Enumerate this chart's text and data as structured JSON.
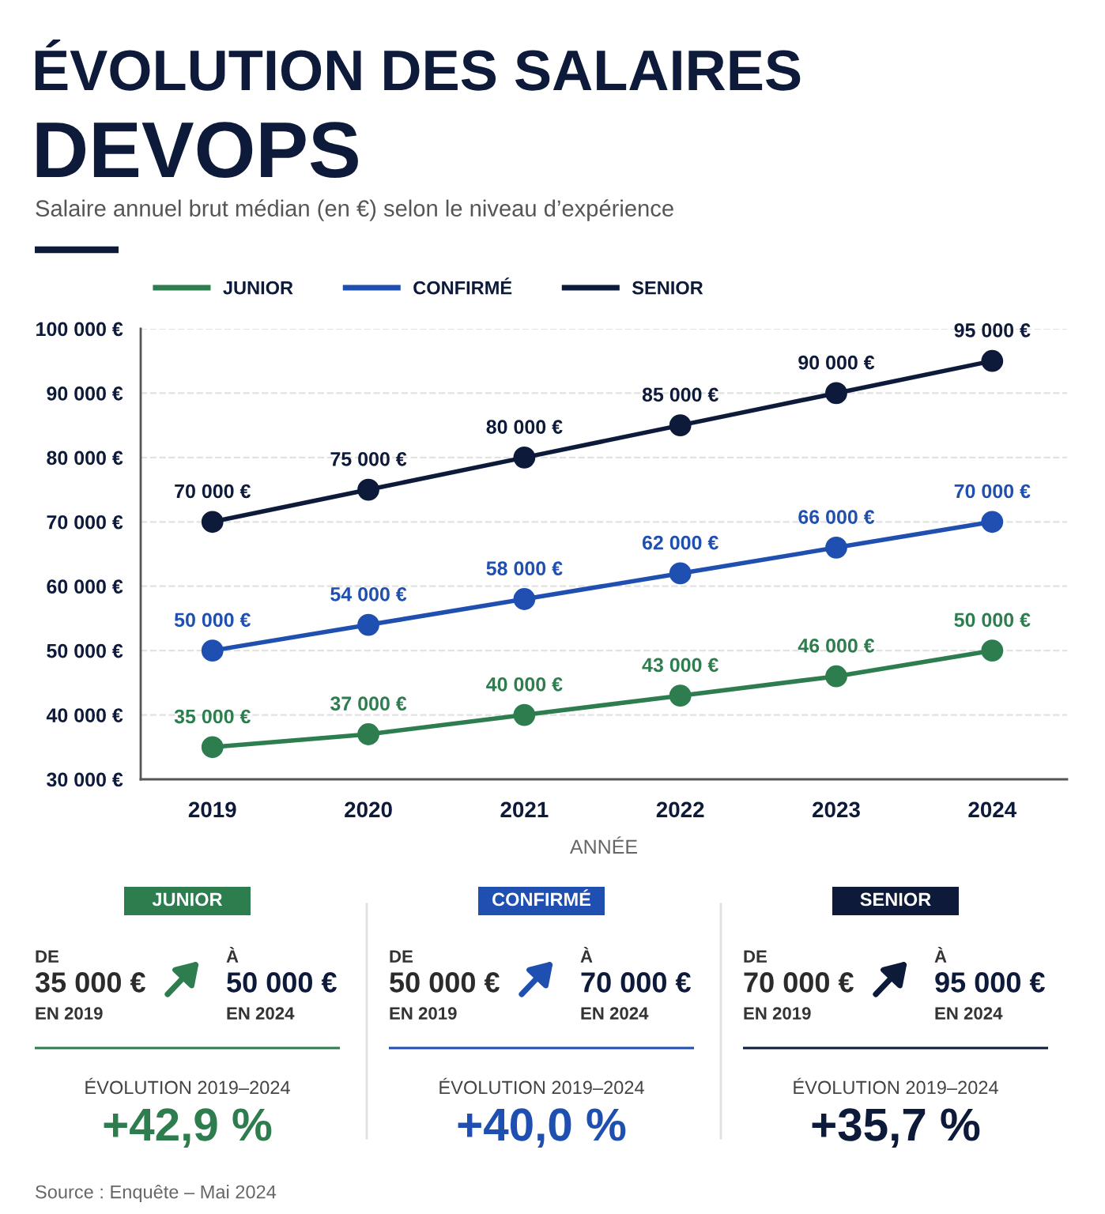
{
  "chart_data": [
    {
      "type": "line",
      "title": "ÉVOLUTION DES SALAIRES\nDEVOPS",
      "subtitle": "Salaire annuel brut médian (en €) selon le niveau d’expérience",
      "xlabel": "ANNÉE",
      "categories": [
        "2019",
        "2020",
        "2021",
        "2022",
        "2023",
        "2024"
      ],
      "series": [
        {
          "name": "JUNIOR",
          "color": "#2e7d4f",
          "values": [
            35000,
            37000,
            40000,
            43000,
            46000,
            50000
          ],
          "value_labels": [
            "35 000 €",
            "37 000 €",
            "40 000 €",
            "43 000 €",
            "46 000 €",
            "50 000 €"
          ]
        },
        {
          "name": "CONFIRMÉ",
          "color": "#1f4fb0",
          "values": [
            50000,
            54000,
            58000,
            62000,
            66000,
            70000
          ],
          "value_labels": [
            "50 000 €",
            "54 000 €",
            "58 000 €",
            "62 000 €",
            "66 000 €",
            "70 000 €"
          ]
        },
        {
          "name": "SENIOR",
          "color": "#0d1a3a",
          "values": [
            70000,
            75000,
            80000,
            85000,
            90000,
            95000
          ],
          "value_labels": [
            "70 000 €",
            "75 000 €",
            "80 000 €",
            "85 000 €",
            "90 000 €",
            "95 000 €"
          ]
        }
      ],
      "ylim": [
        30000,
        100000
      ],
      "yticks": [
        {
          "value": 30000,
          "label": "30 000 €"
        },
        {
          "value": 40000,
          "label": "40 000 €"
        },
        {
          "value": 50000,
          "label": "50 000 €"
        },
        {
          "value": 60000,
          "label": "60 000 €"
        },
        {
          "value": 70000,
          "label": "70 000 €"
        },
        {
          "value": 80000,
          "label": "80 000 €"
        },
        {
          "value": 90000,
          "label": "90 000 €"
        },
        {
          "value": 100000,
          "label": "100 000 €"
        }
      ],
      "grid": "y",
      "legend": "top left",
      "marker": "circle",
      "line_style": "solid",
      "annotations": [
        "Source : Enquête – Mai 2024"
      ]
    },
    {
      "type": "other",
      "title": "JUNIOR",
      "color": "#2e7d4f",
      "annotations": [
        "DE",
        "35 000 €",
        "EN 2019",
        "À",
        "50 000 €",
        "EN 2024",
        "ÉVOLUTION 2019–2024",
        "+42,9 %"
      ]
    },
    {
      "type": "other",
      "title": "CONFIRMÉ",
      "color": "#1f4fb0",
      "annotations": [
        "DE",
        "50 000 €",
        "EN 2019",
        "À",
        "70 000 €",
        "EN 2024",
        "ÉVOLUTION 2019–2024",
        "+40,0 %"
      ]
    },
    {
      "type": "other",
      "title": "SENIOR",
      "color": "#0d1a3a",
      "annotations": [
        "DE",
        "70 000 €",
        "EN 2019",
        "À",
        "95 000 €",
        "EN 2024",
        "ÉVOLUTION 2019–2024",
        "+35,7 %"
      ]
    }
  ]
}
